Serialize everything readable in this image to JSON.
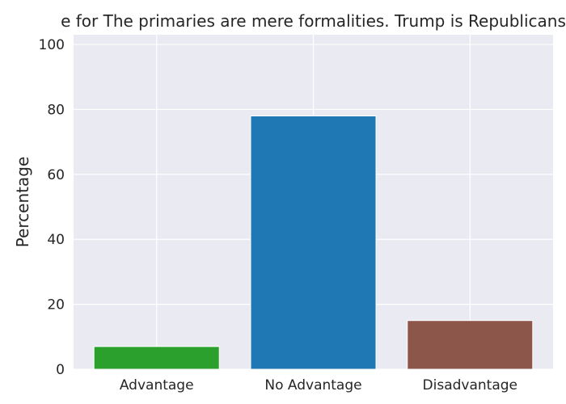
{
  "chart_data": {
    "type": "bar",
    "title": "e for The primaries are mere formalities. Trump is Republicans",
    "xlabel": "",
    "ylabel": "Percentage",
    "categories": [
      "Advantage",
      "No Advantage",
      "Disadvantage"
    ],
    "values": [
      7,
      78,
      15
    ],
    "colors": [
      "#2ca02c",
      "#1f77b4",
      "#8c564b"
    ],
    "ylim": [
      0,
      103
    ],
    "yticks": [
      0,
      20,
      40,
      60,
      80,
      100
    ],
    "grid": true,
    "legend": "none",
    "style": {
      "background": "#eaeaf2",
      "gridColor": "#ffffff"
    }
  }
}
